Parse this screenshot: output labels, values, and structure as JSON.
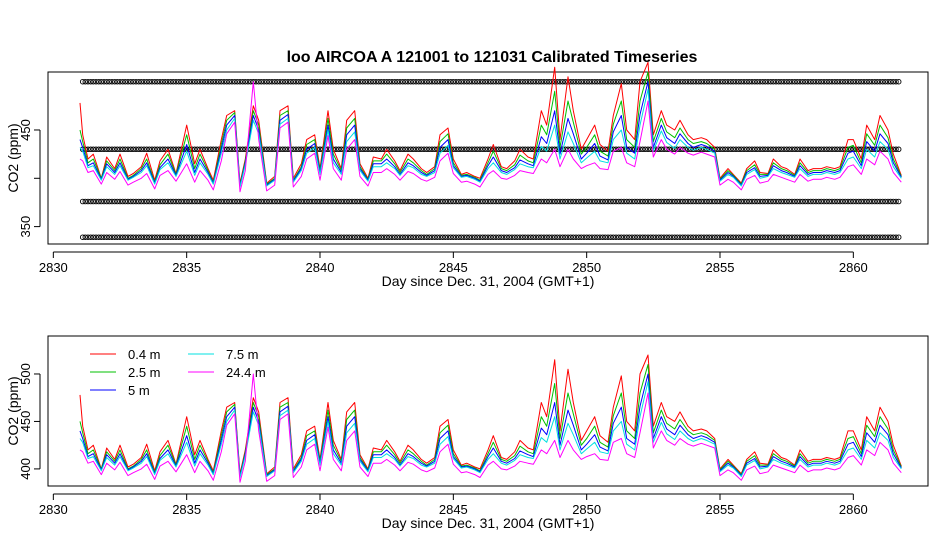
{
  "title": "loo   AIRCOA  A    121001  to  121031   Calibrated Timeseries",
  "colors": {
    "0.4 m": "#ff0000",
    "2.5 m": "#00c000",
    "5 m": "#0000ff",
    "7.5 m": "#00e0e0",
    "24.4 m": "#ff00ff",
    "markers": "#000000"
  },
  "chart_data": [
    {
      "type": "line",
      "title": "loo   AIRCOA  A    121001  to  121031   Calibrated Timeseries",
      "xlabel": "Day since Dec. 31, 2004 (GMT+1)",
      "ylabel": "CO2 (ppm)",
      "xlim": [
        2829.8,
        2862.8
      ],
      "ylim": [
        332,
        510
      ],
      "x_ticks": [
        2830,
        2835,
        2840,
        2845,
        2850,
        2855,
        2860
      ],
      "y_ticks": [
        350,
        400,
        450
      ],
      "x_tick_labels": [
        "2830",
        "2835",
        "2840",
        "2845",
        "2850",
        "2855",
        "2860"
      ],
      "y_tick_labels": [
        "350",
        "",
        "450"
      ],
      "reference_marker_levels": [
        {
          "y": 339,
          "x_start": 2831.1,
          "x_end": 2861.7
        },
        {
          "y": 376,
          "x_start": 2831.1,
          "x_end": 2861.7
        },
        {
          "y": 430,
          "x_start": 2831.1,
          "x_end": 2861.7
        },
        {
          "y": 500,
          "x_start": 2831.1,
          "x_end": 2861.7
        }
      ],
      "reference_marker_spacing_days": 0.1,
      "x": [
        2831.0,
        2831.1,
        2831.3,
        2831.5,
        2831.8,
        2832.0,
        2832.3,
        2832.5,
        2832.8,
        2833.0,
        2833.3,
        2833.5,
        2833.8,
        2834.0,
        2834.3,
        2834.6,
        2835.0,
        2835.3,
        2835.5,
        2835.8,
        2836.0,
        2836.3,
        2836.5,
        2836.8,
        2837.0,
        2837.2,
        2837.5,
        2837.7,
        2838.0,
        2838.3,
        2838.5,
        2838.8,
        2839.0,
        2839.3,
        2839.5,
        2839.8,
        2840.0,
        2840.3,
        2840.5,
        2840.8,
        2841.0,
        2841.3,
        2841.5,
        2841.8,
        2842.0,
        2842.3,
        2842.5,
        2842.8,
        2843.0,
        2843.3,
        2843.5,
        2843.8,
        2844.0,
        2844.3,
        2844.5,
        2844.8,
        2845.0,
        2845.3,
        2845.5,
        2845.8,
        2846.0,
        2846.3,
        2846.5,
        2846.8,
        2847.0,
        2847.3,
        2847.5,
        2847.8,
        2848.0,
        2848.3,
        2848.5,
        2848.8,
        2849.0,
        2849.3,
        2849.5,
        2849.8,
        2850.0,
        2850.3,
        2850.5,
        2850.8,
        2851.0,
        2851.3,
        2851.5,
        2851.8,
        2852.0,
        2852.3,
        2852.5,
        2852.8,
        2853.0,
        2853.3,
        2853.5,
        2853.8,
        2854.0,
        2854.3,
        2854.5,
        2854.8,
        2855.0,
        2855.3,
        2855.5,
        2855.8,
        2856.0,
        2856.3,
        2856.5,
        2856.8,
        2857.0,
        2857.3,
        2857.5,
        2857.8,
        2858.0,
        2858.3,
        2858.5,
        2858.8,
        2859.0,
        2859.3,
        2859.5,
        2859.8,
        2860.0,
        2860.3,
        2860.5,
        2860.8,
        2861.0,
        2861.3,
        2861.5,
        2861.8
      ],
      "series": [
        {
          "name": "0.4 m",
          "values": [
            478,
            445,
            420,
            425,
            400,
            422,
            410,
            425,
            402,
            405,
            412,
            426,
            398,
            418,
            430,
            405,
            455,
            415,
            430,
            410,
            398,
            440,
            465,
            470,
            395,
            420,
            475,
            460,
            395,
            402,
            470,
            475,
            400,
            415,
            440,
            445,
            410,
            470,
            430,
            410,
            460,
            470,
            415,
            400,
            422,
            420,
            430,
            418,
            408,
            425,
            420,
            410,
            406,
            412,
            445,
            452,
            420,
            404,
            406,
            402,
            400,
            420,
            435,
            412,
            410,
            418,
            430,
            422,
            420,
            470,
            455,
            515,
            440,
            505,
            470,
            430,
            440,
            455,
            435,
            428,
            465,
            498,
            450,
            440,
            500,
            520,
            445,
            470,
            455,
            450,
            460,
            445,
            440,
            442,
            440,
            432,
            400,
            410,
            404,
            395,
            410,
            418,
            406,
            405,
            420,
            412,
            410,
            404,
            420,
            408,
            410,
            410,
            412,
            410,
            412,
            440,
            440,
            420,
            455,
            440,
            465,
            450,
            425,
            403
          ]
        },
        {
          "name": "2.5 m",
          "values": [
            450,
            438,
            416,
            420,
            400,
            418,
            408,
            420,
            400,
            403,
            410,
            420,
            396,
            414,
            425,
            404,
            445,
            410,
            425,
            408,
            396,
            435,
            460,
            468,
            393,
            418,
            470,
            455,
            394,
            400,
            465,
            470,
            398,
            412,
            435,
            440,
            408,
            462,
            425,
            408,
            452,
            462,
            412,
            399,
            418,
            418,
            425,
            415,
            406,
            420,
            416,
            408,
            404,
            410,
            438,
            446,
            416,
            403,
            404,
            401,
            398,
            416,
            428,
            410,
            408,
            414,
            424,
            418,
            416,
            455,
            445,
            490,
            432,
            480,
            458,
            425,
            432,
            445,
            428,
            423,
            456,
            480,
            440,
            432,
            480,
            510,
            438,
            462,
            448,
            442,
            452,
            440,
            436,
            438,
            436,
            430,
            399,
            408,
            403,
            394,
            408,
            414,
            404,
            404,
            416,
            410,
            408,
            403,
            416,
            406,
            408,
            408,
            410,
            408,
            410,
            432,
            434,
            416,
            446,
            434,
            455,
            442,
            420,
            402
          ]
        },
        {
          "name": "5 m",
          "values": [
            440,
            432,
            413,
            416,
            399,
            415,
            406,
            416,
            399,
            402,
            408,
            416,
            395,
            411,
            420,
            403,
            435,
            406,
            420,
            406,
            395,
            430,
            455,
            465,
            392,
            416,
            465,
            450,
            393,
            399,
            460,
            466,
            397,
            410,
            430,
            436,
            406,
            455,
            420,
            406,
            445,
            455,
            410,
            398,
            415,
            415,
            420,
            412,
            404,
            416,
            413,
            406,
            403,
            408,
            432,
            440,
            413,
            402,
            403,
            400,
            397,
            413,
            422,
            408,
            406,
            411,
            419,
            415,
            413,
            443,
            436,
            470,
            425,
            462,
            446,
            420,
            426,
            436,
            423,
            419,
            448,
            465,
            432,
            426,
            466,
            500,
            432,
            455,
            442,
            436,
            446,
            436,
            432,
            435,
            433,
            428,
            398,
            406,
            402,
            393,
            406,
            411,
            402,
            403,
            413,
            408,
            406,
            402,
            413,
            404,
            406,
            406,
            408,
            406,
            408,
            426,
            428,
            413,
            438,
            428,
            446,
            436,
            416,
            401
          ]
        },
        {
          "name": "7.5 m",
          "values": [
            432,
            428,
            411,
            413,
            398,
            412,
            404,
            413,
            398,
            401,
            406,
            413,
            394,
            409,
            416,
            402,
            428,
            403,
            416,
            404,
            394,
            426,
            450,
            462,
            391,
            414,
            460,
            446,
            392,
            398,
            456,
            462,
            396,
            408,
            426,
            432,
            404,
            450,
            416,
            404,
            438,
            448,
            408,
            397,
            412,
            412,
            416,
            410,
            403,
            413,
            411,
            404,
            402,
            406,
            426,
            434,
            411,
            401,
            402,
            399,
            396,
            410,
            416,
            406,
            404,
            409,
            415,
            412,
            411,
            433,
            428,
            455,
            420,
            448,
            436,
            416,
            421,
            428,
            418,
            416,
            440,
            450,
            426,
            420,
            455,
            492,
            428,
            449,
            437,
            431,
            440,
            432,
            429,
            432,
            430,
            426,
            397,
            404,
            401,
            392,
            404,
            409,
            400,
            402,
            410,
            406,
            404,
            401,
            410,
            402,
            404,
            404,
            406,
            404,
            406,
            420,
            422,
            410,
            430,
            422,
            438,
            430,
            412,
            400
          ]
        },
        {
          "name": "24.4 m",
          "values": [
            420,
            418,
            406,
            408,
            394,
            406,
            399,
            407,
            393,
            396,
            400,
            405,
            389,
            403,
            408,
            397,
            415,
            396,
            408,
            398,
            388,
            418,
            446,
            458,
            386,
            408,
            500,
            440,
            387,
            393,
            452,
            458,
            391,
            402,
            420,
            426,
            398,
            444,
            410,
            398,
            430,
            440,
            402,
            392,
            406,
            406,
            410,
            404,
            398,
            407,
            405,
            399,
            397,
            401,
            418,
            426,
            405,
            396,
            397,
            394,
            391,
            404,
            408,
            400,
            399,
            403,
            408,
            406,
            405,
            420,
            416,
            430,
            412,
            430,
            420,
            410,
            413,
            416,
            410,
            409,
            428,
            432,
            416,
            412,
            438,
            480,
            422,
            440,
            430,
            425,
            432,
            426,
            424,
            427,
            425,
            422,
            393,
            399,
            396,
            388,
            399,
            403,
            395,
            397,
            404,
            401,
            399,
            396,
            404,
            397,
            399,
            399,
            401,
            399,
            401,
            412,
            414,
            404,
            420,
            414,
            428,
            420,
            406,
            396
          ]
        }
      ]
    },
    {
      "type": "line",
      "title": "",
      "xlabel": "Day since Dec. 31, 2004 (GMT+1)",
      "ylabel": "CO2 (ppm)",
      "xlim": [
        2829.8,
        2862.8
      ],
      "ylim": [
        382,
        540
      ],
      "x_ticks": [
        2830,
        2835,
        2840,
        2845,
        2850,
        2855,
        2860
      ],
      "y_ticks": [
        400,
        450,
        500
      ],
      "x_tick_labels": [
        "2830",
        "2835",
        "2840",
        "2845",
        "2850",
        "2855",
        "2860"
      ],
      "y_tick_labels": [
        "400",
        "450",
        "500"
      ],
      "legend": {
        "position": "top-left",
        "entries": [
          "0.4 m",
          "2.5 m",
          "5 m",
          "7.5 m",
          "24.4 m"
        ]
      },
      "same_series_as_panel": 0
    }
  ]
}
